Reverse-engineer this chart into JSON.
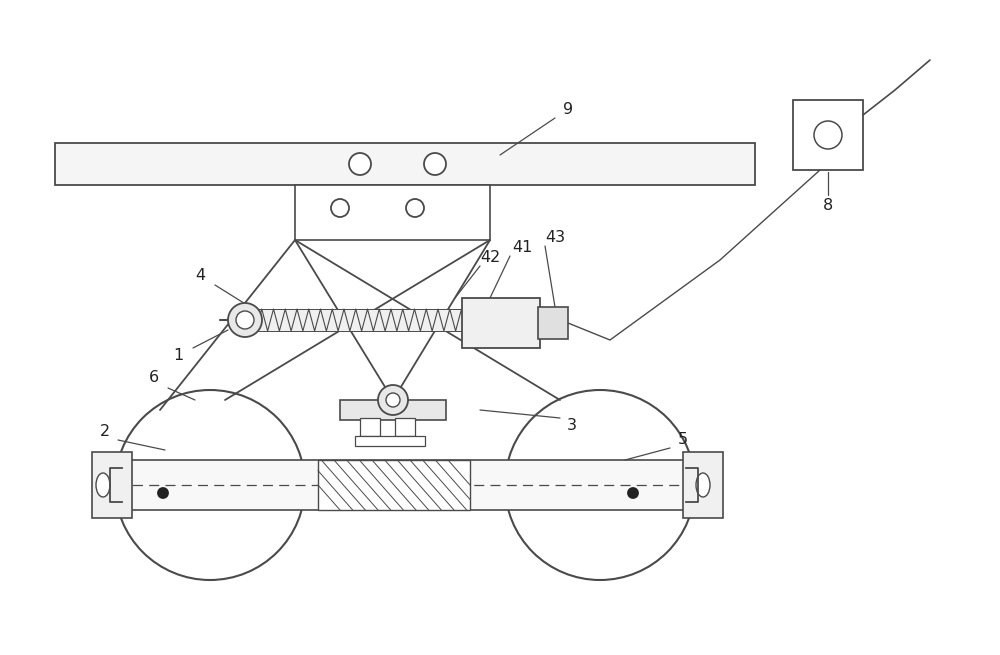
{
  "bg_color": "#ffffff",
  "line_color": "#4a4a4a",
  "label_color": "#222222",
  "fig_width": 10.0,
  "fig_height": 6.55,
  "dpi": 100
}
